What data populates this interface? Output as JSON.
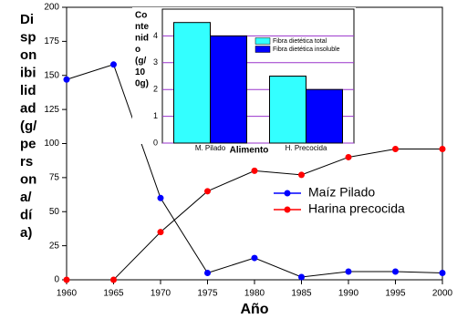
{
  "chart_data": [
    {
      "type": "line",
      "ylabel_lines": [
        "Di",
        "sp",
        "on",
        "ibi",
        "lid",
        "ad",
        "(g/",
        "pe",
        "rs",
        "on",
        "a/",
        "dí",
        "a)"
      ],
      "xlabel": "Año",
      "x": [
        1960,
        1965,
        1970,
        1975,
        1980,
        1985,
        1990,
        1995,
        2000
      ],
      "series": [
        {
          "name": "Maíz Pilado",
          "color": "#0000ff",
          "values": [
            147,
            158,
            60,
            5,
            16,
            2,
            6,
            6,
            5
          ]
        },
        {
          "name": "Harina precocida",
          "color": "#ff0000",
          "values": [
            0,
            0,
            35,
            65,
            80,
            77,
            90,
            96,
            96
          ]
        }
      ],
      "xlim": [
        1960,
        2000
      ],
      "xticks": [
        1960,
        1965,
        1970,
        1975,
        1980,
        1985,
        1990,
        1995,
        2000
      ],
      "ylim": [
        0,
        200
      ],
      "yticks": [
        0,
        25,
        50,
        75,
        100,
        125,
        150,
        175,
        200
      ],
      "legend": "right"
    },
    {
      "type": "bar",
      "ylabel_lines": [
        "Co",
        "nte",
        "nid",
        "o",
        "(g/",
        "10",
        "0g)"
      ],
      "xlabel": "Alimento",
      "categories": [
        "M. Pilado",
        "H. Precocida"
      ],
      "series": [
        {
          "name": "Fibra dietética total",
          "color": "#33ffff",
          "values": [
            4.5,
            2.5
          ]
        },
        {
          "name": "Fibra dietética insoluble",
          "color": "#0000ff",
          "values": [
            4.0,
            2.0
          ]
        }
      ],
      "ylim": [
        0,
        5
      ],
      "yticks": [
        0,
        1,
        2,
        3,
        4
      ],
      "grid": true,
      "legend": "upper right"
    }
  ]
}
